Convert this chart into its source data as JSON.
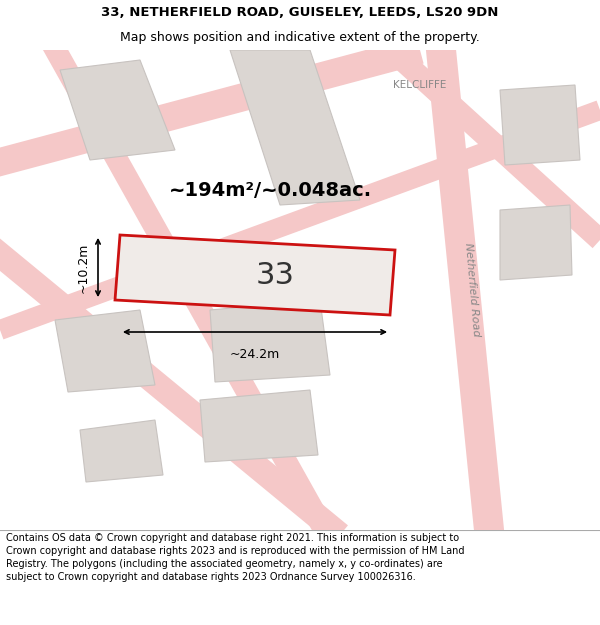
{
  "title_line1": "33, NETHERFIELD ROAD, GUISELEY, LEEDS, LS20 9DN",
  "title_line2": "Map shows position and indicative extent of the property.",
  "footer_text": "Contains OS data © Crown copyright and database right 2021. This information is subject to Crown copyright and database rights 2023 and is reproduced with the permission of HM Land Registry. The polygons (including the associated geometry, namely x, y co-ordinates) are subject to Crown copyright and database rights 2023 Ordnance Survey 100026316.",
  "main_plot_number": "33",
  "area_label": "~194m²/~0.048ac.",
  "width_label": "~24.2m",
  "height_label": "~10.2m",
  "road_label": "Netherfield Road",
  "kelcliffe_label": "KELCLIFFE",
  "map_bg": "#ffffff",
  "plot_fill": "#f0ebe8",
  "plot_border": "#cc1111",
  "road_color": "#f5c8c8",
  "road_stroke": "#e8a8a8",
  "neighbor_fill": "#dbd6d2",
  "neighbor_stroke": "#c8c3c0",
  "text_color": "#333333",
  "road_text_color": "#888888",
  "title_fontsize": 9.5,
  "subtitle_fontsize": 9,
  "footer_fontsize": 7,
  "plot_label_fontsize": 22,
  "area_fontsize": 14,
  "dim_fontsize": 9,
  "kelcliffe_fontsize": 7.5,
  "road_label_fontsize": 8
}
